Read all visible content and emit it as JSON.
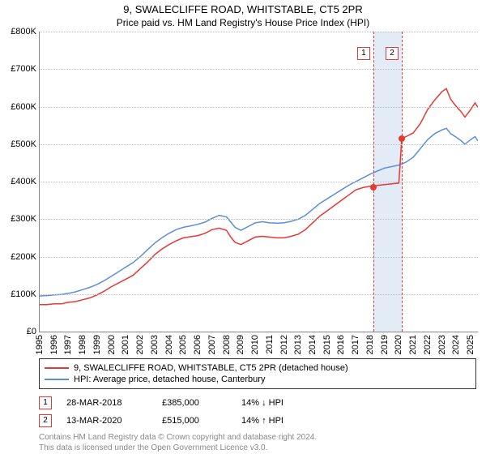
{
  "title": "9, SWALECLIFFE ROAD, WHITSTABLE, CT5 2PR",
  "subtitle": "Price paid vs. HM Land Registry's House Price Index (HPI)",
  "chart": {
    "type": "line",
    "ylim": [
      0,
      800000
    ],
    "ytick_step": 100000,
    "ytick_labels": [
      "£0",
      "£100K",
      "£200K",
      "£300K",
      "£400K",
      "£500K",
      "£600K",
      "£700K",
      "£800K"
    ],
    "xlim": [
      1995,
      2025.5
    ],
    "xticks": [
      1995,
      1996,
      1997,
      1998,
      1999,
      2000,
      2001,
      2002,
      2003,
      2004,
      2005,
      2006,
      2007,
      2008,
      2009,
      2010,
      2011,
      2012,
      2013,
      2014,
      2015,
      2016,
      2017,
      2018,
      2019,
      2020,
      2021,
      2022,
      2023,
      2024,
      2025
    ],
    "grid_color": "#bdbdbd",
    "background_color": "#ffffff",
    "series": [
      {
        "name": "series-price-paid",
        "label": "9, SWALECLIFFE ROAD, WHITSTABLE, CT5 2PR (detached house)",
        "color": "#e53935",
        "width": 1.5,
        "data": [
          [
            1995,
            72000
          ],
          [
            1995.5,
            72000
          ],
          [
            1996,
            74000
          ],
          [
            1996.5,
            74000
          ],
          [
            1997,
            78000
          ],
          [
            1997.5,
            80000
          ],
          [
            1998,
            85000
          ],
          [
            1998.5,
            90000
          ],
          [
            1999,
            98000
          ],
          [
            1999.5,
            108000
          ],
          [
            2000,
            120000
          ],
          [
            2000.5,
            130000
          ],
          [
            2001,
            140000
          ],
          [
            2001.5,
            150000
          ],
          [
            2002,
            168000
          ],
          [
            2002.5,
            185000
          ],
          [
            2003,
            205000
          ],
          [
            2003.5,
            220000
          ],
          [
            2004,
            232000
          ],
          [
            2004.5,
            242000
          ],
          [
            2005,
            250000
          ],
          [
            2005.5,
            253000
          ],
          [
            2006,
            256000
          ],
          [
            2006.5,
            262000
          ],
          [
            2007,
            272000
          ],
          [
            2007.5,
            276000
          ],
          [
            2008,
            270000
          ],
          [
            2008.3,
            252000
          ],
          [
            2008.6,
            238000
          ],
          [
            2009,
            232000
          ],
          [
            2009.5,
            242000
          ],
          [
            2010,
            252000
          ],
          [
            2010.5,
            254000
          ],
          [
            2011,
            252000
          ],
          [
            2011.5,
            250000
          ],
          [
            2012,
            250000
          ],
          [
            2012.5,
            254000
          ],
          [
            2013,
            260000
          ],
          [
            2013.5,
            272000
          ],
          [
            2014,
            290000
          ],
          [
            2014.5,
            308000
          ],
          [
            2015,
            322000
          ],
          [
            2015.5,
            336000
          ],
          [
            2016,
            350000
          ],
          [
            2016.5,
            364000
          ],
          [
            2017,
            378000
          ],
          [
            2017.5,
            384000
          ],
          [
            2018,
            388000
          ],
          [
            2018.22,
            385000
          ],
          [
            2018.5,
            390000
          ],
          [
            2019,
            392000
          ],
          [
            2019.5,
            394000
          ],
          [
            2020,
            396000
          ],
          [
            2020.2,
            515000
          ],
          [
            2020.5,
            520000
          ],
          [
            2021,
            530000
          ],
          [
            2021.5,
            555000
          ],
          [
            2022,
            592000
          ],
          [
            2022.5,
            618000
          ],
          [
            2023,
            640000
          ],
          [
            2023.3,
            648000
          ],
          [
            2023.6,
            620000
          ],
          [
            2024,
            600000
          ],
          [
            2024.3,
            588000
          ],
          [
            2024.6,
            572000
          ],
          [
            2025,
            592000
          ],
          [
            2025.3,
            610000
          ],
          [
            2025.5,
            598000
          ]
        ]
      },
      {
        "name": "series-hpi",
        "label": "HPI: Average price, detached house, Canterbury",
        "color": "#5a8fd6",
        "width": 1.5,
        "data": [
          [
            1995,
            95000
          ],
          [
            1995.5,
            96000
          ],
          [
            1996,
            98000
          ],
          [
            1996.5,
            99000
          ],
          [
            1997,
            102000
          ],
          [
            1997.5,
            106000
          ],
          [
            1998,
            112000
          ],
          [
            1998.5,
            118000
          ],
          [
            1999,
            126000
          ],
          [
            1999.5,
            136000
          ],
          [
            2000,
            148000
          ],
          [
            2000.5,
            160000
          ],
          [
            2001,
            172000
          ],
          [
            2001.5,
            184000
          ],
          [
            2002,
            200000
          ],
          [
            2002.5,
            218000
          ],
          [
            2003,
            236000
          ],
          [
            2003.5,
            250000
          ],
          [
            2004,
            262000
          ],
          [
            2004.5,
            272000
          ],
          [
            2005,
            278000
          ],
          [
            2005.5,
            282000
          ],
          [
            2006,
            286000
          ],
          [
            2006.5,
            292000
          ],
          [
            2007,
            302000
          ],
          [
            2007.5,
            310000
          ],
          [
            2008,
            306000
          ],
          [
            2008.3,
            292000
          ],
          [
            2008.6,
            278000
          ],
          [
            2009,
            270000
          ],
          [
            2009.5,
            280000
          ],
          [
            2010,
            290000
          ],
          [
            2010.5,
            293000
          ],
          [
            2011,
            290000
          ],
          [
            2011.5,
            289000
          ],
          [
            2012,
            290000
          ],
          [
            2012.5,
            294000
          ],
          [
            2013,
            300000
          ],
          [
            2013.5,
            310000
          ],
          [
            2014,
            326000
          ],
          [
            2014.5,
            342000
          ],
          [
            2015,
            354000
          ],
          [
            2015.5,
            366000
          ],
          [
            2016,
            378000
          ],
          [
            2016.5,
            390000
          ],
          [
            2017,
            400000
          ],
          [
            2017.5,
            410000
          ],
          [
            2018,
            420000
          ],
          [
            2018.5,
            428000
          ],
          [
            2019,
            436000
          ],
          [
            2019.5,
            440000
          ],
          [
            2020,
            444000
          ],
          [
            2020.5,
            452000
          ],
          [
            2021,
            465000
          ],
          [
            2021.5,
            488000
          ],
          [
            2022,
            512000
          ],
          [
            2022.5,
            528000
          ],
          [
            2023,
            538000
          ],
          [
            2023.3,
            542000
          ],
          [
            2023.6,
            528000
          ],
          [
            2024,
            518000
          ],
          [
            2024.3,
            510000
          ],
          [
            2024.6,
            500000
          ],
          [
            2025,
            512000
          ],
          [
            2025.3,
            520000
          ],
          [
            2025.5,
            508000
          ]
        ]
      }
    ],
    "highlight_band": {
      "start": 2018.22,
      "end": 2020.2,
      "color": "#e3ecf6"
    },
    "event_lines": [
      {
        "x": 2018.22,
        "color": "#e53935"
      },
      {
        "x": 2020.2,
        "color": "#e53935"
      }
    ],
    "event_markers": [
      {
        "num": "1",
        "x": 2018.22,
        "box_y": 760000,
        "point_y": 385000,
        "point_color": "#e53935"
      },
      {
        "num": "2",
        "x": 2020.2,
        "box_y": 760000,
        "point_y": 515000,
        "point_color": "#e53935"
      }
    ]
  },
  "legend": [
    {
      "label": "9, SWALECLIFFE ROAD, WHITSTABLE, CT5 2PR (detached house)",
      "color": "#e53935"
    },
    {
      "label": "HPI: Average price, detached house, Canterbury",
      "color": "#5a8fd6"
    }
  ],
  "events": [
    {
      "num": "1",
      "date": "28-MAR-2018",
      "price": "£385,000",
      "diff": "14% ↓ HPI"
    },
    {
      "num": "2",
      "date": "13-MAR-2020",
      "price": "£515,000",
      "diff": "14% ↑ HPI"
    }
  ],
  "footer": {
    "line1": "Contains HM Land Registry data © Crown copyright and database right 2024.",
    "line2": "This data is licensed under the Open Government Licence v3.0."
  }
}
